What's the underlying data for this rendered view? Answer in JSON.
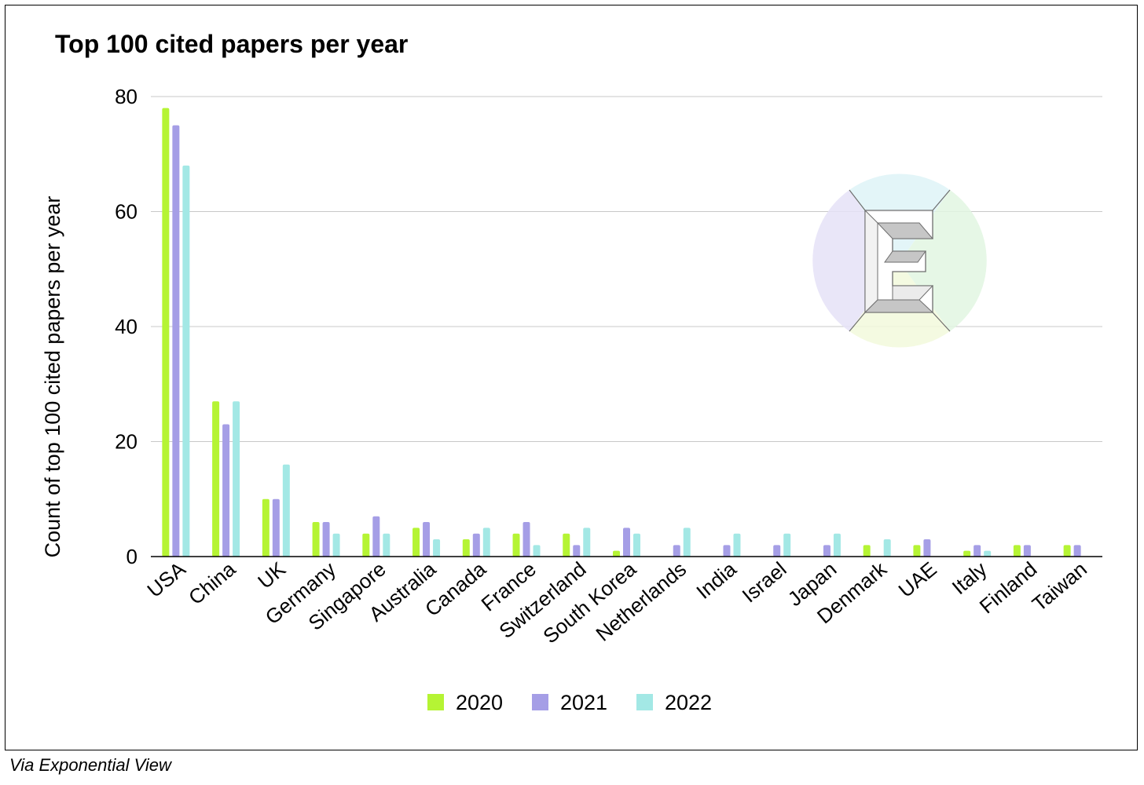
{
  "title": "Top 100 cited papers per year",
  "credit": "Via Exponential View",
  "logo_icon": "exponential-view-e-logo",
  "colors": {
    "2020": "#b5f434",
    "2021": "#a59ee6",
    "2022": "#a3e8e5",
    "grid": "#c8c8c8",
    "axis": "#000000"
  },
  "chart_data": {
    "type": "bar",
    "title": "Top 100 cited papers per year",
    "xlabel": "",
    "ylabel": "Count of top 100 cited papers per year",
    "ylim": [
      0,
      80
    ],
    "yticks": [
      0,
      20,
      40,
      60,
      80
    ],
    "grid": true,
    "legend_position": "bottom",
    "categories": [
      "USA",
      "China",
      "UK",
      "Germany",
      "Singapore",
      "Australia",
      "Canada",
      "France",
      "Switzerland",
      "South Korea",
      "Netherlands",
      "India",
      "Israel",
      "Japan",
      "Denmark",
      "UAE",
      "Italy",
      "Finland",
      "Taiwan"
    ],
    "series": [
      {
        "name": "2020",
        "values": [
          78,
          27,
          10,
          6,
          4,
          5,
          3,
          4,
          4,
          1,
          0,
          0,
          0,
          0,
          2,
          2,
          1,
          2,
          2
        ]
      },
      {
        "name": "2021",
        "values": [
          75,
          23,
          10,
          6,
          7,
          6,
          4,
          6,
          2,
          5,
          2,
          2,
          2,
          2,
          0,
          3,
          2,
          2,
          2
        ]
      },
      {
        "name": "2022",
        "values": [
          68,
          27,
          16,
          4,
          4,
          3,
          5,
          2,
          5,
          4,
          5,
          4,
          4,
          4,
          3,
          0,
          1,
          0,
          0
        ]
      }
    ]
  }
}
